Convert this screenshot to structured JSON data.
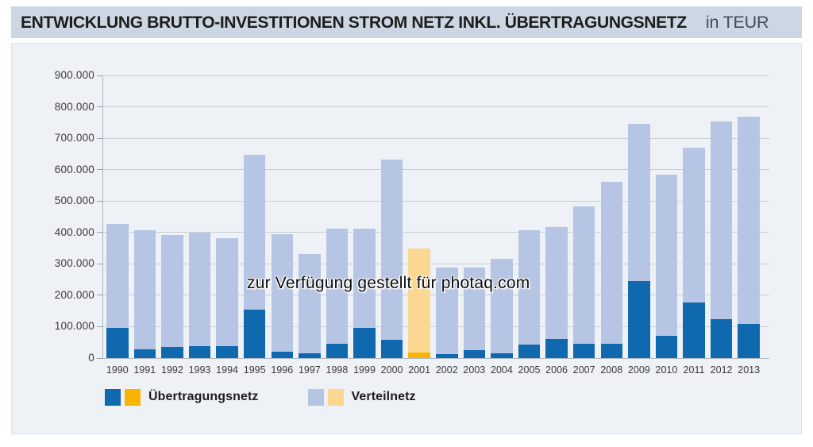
{
  "header": {
    "title": "ENTWICKLUNG BRUTTO-INVESTITIONEN STROM NETZ INKL. ÜBERTRAGUNGSNETZ",
    "unit": "in TEUR"
  },
  "watermark_text": "zur Verfügung gestellt für photaq.com",
  "colors": {
    "header_bg": "#ccd7e3",
    "panel_bg": "#eef1f5",
    "uebertragungsnetz": "#1068af",
    "uebertragungsnetz_highlight": "#f8b400",
    "verteilnetz": "#b6c5e4",
    "verteilnetz_highlight": "#fbd891",
    "gridline": "#c9cfd7",
    "axis": "#aeb8c2"
  },
  "legend": {
    "items": [
      {
        "label": "Übertragungsnetz",
        "swatch_colors": [
          "#1068af",
          "#f8b400"
        ]
      },
      {
        "label": "Verteilnetz",
        "swatch_colors": [
          "#b6c5e4",
          "#fbd891"
        ]
      }
    ]
  },
  "chart_data": {
    "type": "bar",
    "stacked": true,
    "title": "Entwicklung Brutto-Investitionen Strom Netz inkl. Übertragungsnetz",
    "ylabel": "TEUR",
    "xlabel": "",
    "grid": "horizontal",
    "legend_position": "bottom",
    "ylim": [
      0,
      900000
    ],
    "ytick_step": 100000,
    "highlight_category": "2001",
    "categories": [
      "1990",
      "1991",
      "1992",
      "1993",
      "1994",
      "1995",
      "1996",
      "1997",
      "1998",
      "1999",
      "2000",
      "2001",
      "2002",
      "2003",
      "2004",
      "2005",
      "2006",
      "2007",
      "2008",
      "2009",
      "2010",
      "2011",
      "2012",
      "2013"
    ],
    "series": [
      {
        "name": "Übertragungsnetz",
        "values": [
          97000,
          27000,
          36000,
          37000,
          38000,
          155000,
          21000,
          14000,
          46000,
          95000,
          57000,
          17000,
          13000,
          25000,
          14000,
          42000,
          61000,
          45000,
          45000,
          245000,
          72000,
          178000,
          125000,
          108000
        ]
      },
      {
        "name": "Verteilnetz",
        "values": [
          330000,
          381000,
          357000,
          363000,
          343000,
          493000,
          373000,
          318000,
          367000,
          318000,
          574000,
          332000,
          274000,
          264000,
          301000,
          366000,
          357000,
          438000,
          517000,
          501000,
          511000,
          492000,
          628000,
          660000
        ]
      }
    ]
  }
}
